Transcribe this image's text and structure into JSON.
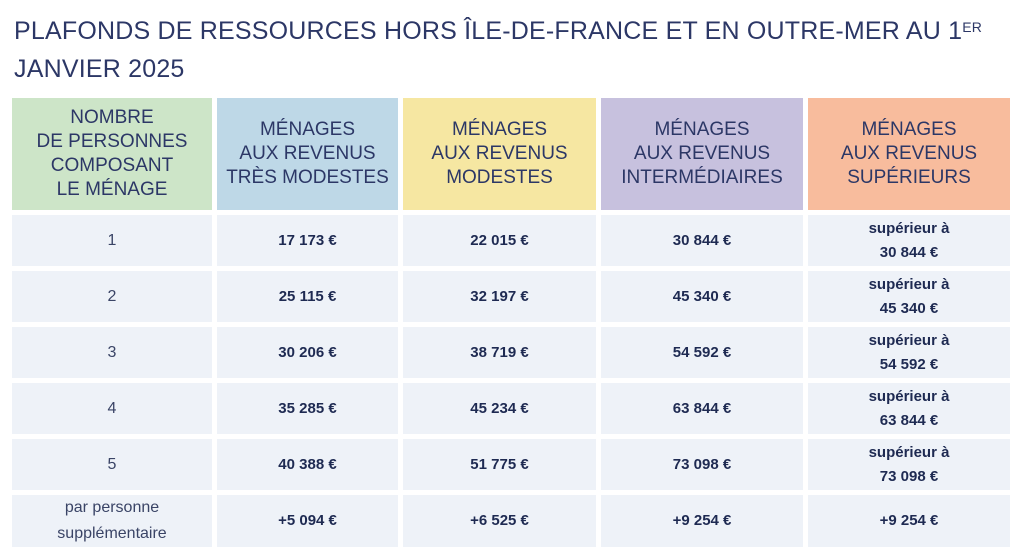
{
  "title": {
    "text": "PLAFONDS DE RESSOURCES HORS ÎLE-DE-FRANCE ET EN OUTRE-MER AU 1",
    "sup": "ER",
    "line2": "JANVIER 2025"
  },
  "colors": {
    "col0": "#cde5c8",
    "col1": "#bed8e7",
    "col2": "#f6e7a2",
    "col3": "#c7c1de",
    "col4": "#f8bc9d",
    "cell": "#eef2f8"
  },
  "headers": [
    [
      "NOMBRE",
      "DE PERSONNES",
      "COMPOSANT",
      "LE MÉNAGE"
    ],
    [
      "MÉNAGES",
      "AUX REVENUS",
      "TRÈS MODESTES"
    ],
    [
      "MÉNAGES",
      "AUX REVENUS",
      "MODESTES"
    ],
    [
      "MÉNAGES",
      "AUX REVENUS",
      "INTERMÉDIAIRES"
    ],
    [
      "MÉNAGES",
      "AUX REVENUS",
      "SUPÉRIEURS"
    ]
  ],
  "rows": [
    {
      "persons": [
        "1"
      ],
      "tres_modestes": "17 173 €",
      "modestes": "22 015 €",
      "intermediaires": "30 844 €",
      "superieurs": [
        "supérieur à",
        "30 844 €"
      ]
    },
    {
      "persons": [
        "2"
      ],
      "tres_modestes": "25 115 €",
      "modestes": "32 197 €",
      "intermediaires": "45 340 €",
      "superieurs": [
        "supérieur à",
        "45 340 €"
      ]
    },
    {
      "persons": [
        "3"
      ],
      "tres_modestes": "30 206 €",
      "modestes": "38 719 €",
      "intermediaires": "54 592 €",
      "superieurs": [
        "supérieur à",
        "54 592 €"
      ]
    },
    {
      "persons": [
        "4"
      ],
      "tres_modestes": "35 285 €",
      "modestes": "45 234 €",
      "intermediaires": "63 844 €",
      "superieurs": [
        "supérieur à",
        "63 844 €"
      ]
    },
    {
      "persons": [
        "5"
      ],
      "tres_modestes": "40 388 €",
      "modestes": "51 775 €",
      "intermediaires": "73 098 €",
      "superieurs": [
        "supérieur à",
        "73 098 €"
      ]
    },
    {
      "persons": [
        "par personne",
        "supplémentaire"
      ],
      "tres_modestes": "+5 094 €",
      "modestes": "+6 525 €",
      "intermediaires": "+9 254 €",
      "superieurs": [
        "+9 254 €"
      ]
    }
  ]
}
